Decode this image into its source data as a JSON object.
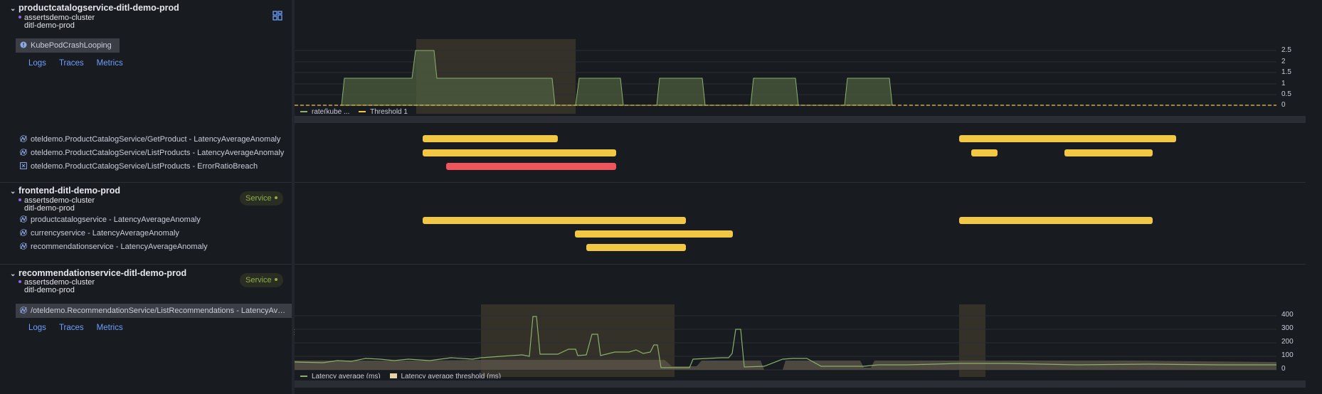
{
  "services": [
    {
      "title": "productcatalogservice-ditl-demo-prod",
      "cluster": "assertsdemo-cluster",
      "namespace": "ditl-demo-prod",
      "tag": "KubePodCrashLooping",
      "links": [
        "Logs",
        "Traces",
        "Metrics"
      ],
      "items": [
        "oteldemo.ProductCatalogService/GetProduct - LatencyAverageAnomaly",
        "oteldemo.ProductCatalogService/ListProducts - LatencyAverageAnomaly",
        "oteldemo.ProductCatalogService/ListProducts - ErrorRatioBreach"
      ]
    },
    {
      "title": "frontend-ditl-demo-prod",
      "cluster": "assertsdemo-cluster",
      "namespace": "ditl-demo-prod",
      "badge": "Service",
      "items": [
        "productcatalogservice - LatencyAverageAnomaly",
        "currencyservice - LatencyAverageAnomaly",
        "recommendationservice - LatencyAverageAnomaly"
      ]
    },
    {
      "title": "recommendationservice-ditl-demo-prod",
      "cluster": "assertsdemo-cluster",
      "namespace": "ditl-demo-prod",
      "badge": "Service",
      "tag": "/oteldemo.RecommendationService/ListRecommendations - LatencyAverageAnomaly",
      "links": [
        "Logs",
        "Traces",
        "Metrics"
      ]
    }
  ],
  "chart1": {
    "y_ticks": [
      "2.5",
      "2",
      "1.5",
      "1",
      "0.5",
      "0"
    ],
    "legend": [
      "rate(kube ...",
      "Threshold 1"
    ],
    "colors": {
      "series": "#8ab06a",
      "threshold": "#f2c744",
      "highlight": "#4a4430"
    }
  },
  "chart2": {
    "y_ticks": [
      "400",
      "300",
      "200",
      "100",
      "0"
    ],
    "legend": [
      "Latency average (ms)",
      "Latency average threshold (ms)"
    ],
    "colors": {
      "series": "#8ab06a",
      "threshold": "#5b5448",
      "highlight": "#4a4430"
    }
  }
}
